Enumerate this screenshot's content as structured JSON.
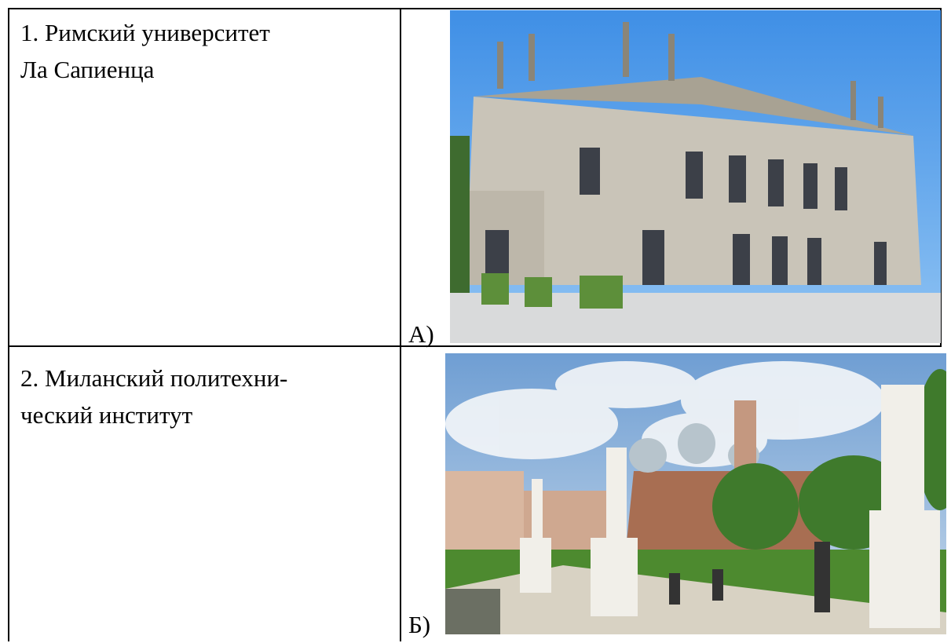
{
  "table": {
    "rows": [
      {
        "left": [
          "1. Римский университет",
          "Ла Сапиенца"
        ],
        "marker": "А)"
      },
      {
        "left": [
          "2. Миланский политехни-",
          "ческий институт"
        ],
        "marker": "Б)"
      }
    ]
  }
}
